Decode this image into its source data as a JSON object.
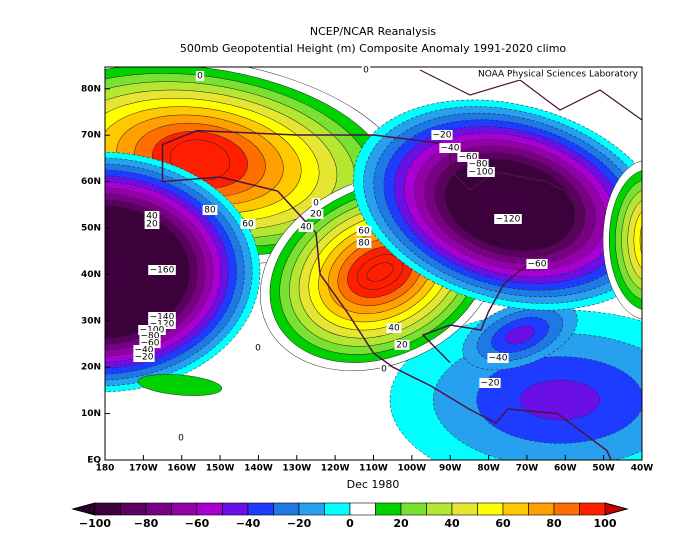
{
  "header": {
    "title": "NCEP/NCAR Reanalysis",
    "subtitle": "500mb Geopotential Height (m) Composite Anomaly 1991-2020 climo"
  },
  "map": {
    "credit": "NOAA Physical Sciences Laboratory",
    "date": "Dec 1980",
    "lat_labels": [
      "EQ",
      "10N",
      "20N",
      "30N",
      "40N",
      "50N",
      "60N",
      "70N",
      "80N"
    ],
    "lon_labels": [
      "180",
      "170W",
      "160W",
      "150W",
      "140W",
      "130W",
      "120W",
      "110W",
      "100W",
      "90W",
      "80W",
      "70W",
      "60W",
      "50W",
      "40W"
    ],
    "contour_labels": [
      "0",
      "0",
      "−20",
      "−40",
      "−60",
      "−80",
      "−100",
      "−120",
      "−60",
      "80",
      "60",
      "40",
      "20",
      "0",
      "20",
      "40",
      "60",
      "80",
      "40",
      "20",
      "0",
      "0",
      "−40",
      "−20",
      "0",
      "−160",
      "−140",
      "−120",
      "−100",
      "−80",
      "−60",
      "−40",
      "−20"
    ]
  },
  "colorbar": {
    "labels": [
      "−100",
      "−80",
      "−60",
      "−40",
      "−20",
      "0",
      "20",
      "40",
      "60",
      "80",
      "100"
    ]
  }
}
